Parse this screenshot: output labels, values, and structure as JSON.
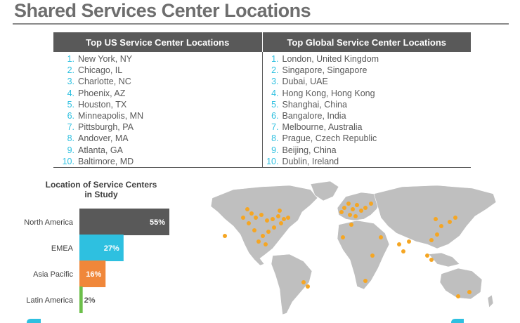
{
  "page": {
    "title": "Shared Services Center Locations"
  },
  "locations_table": {
    "us_header": "Top US Service Center Locations",
    "global_header": "Top Global Service Center Locations",
    "us": [
      {
        "num": "1.",
        "city": "New York, NY"
      },
      {
        "num": "2.",
        "city": "Chicago, IL"
      },
      {
        "num": "3.",
        "city": "Charlotte, NC"
      },
      {
        "num": "4.",
        "city": "Phoenix, AZ"
      },
      {
        "num": "5.",
        "city": "Houston, TX"
      },
      {
        "num": "6.",
        "city": "Minneapolis, MN"
      },
      {
        "num": "7.",
        "city": "Pittsburgh, PA"
      },
      {
        "num": "8.",
        "city": "Andover, MA"
      },
      {
        "num": "9.",
        "city": "Atlanta, GA"
      },
      {
        "num": "10.",
        "city": "Baltimore, MD"
      }
    ],
    "global": [
      {
        "num": "1.",
        "city": "London, United Kingdom"
      },
      {
        "num": "2.",
        "city": "Singapore, Singapore"
      },
      {
        "num": "3.",
        "city": "Dubai, UAE"
      },
      {
        "num": "4.",
        "city": "Hong Kong, Hong Kong"
      },
      {
        "num": "5.",
        "city": "Shanghai, China"
      },
      {
        "num": "6.",
        "city": "Bangalore, India"
      },
      {
        "num": "7.",
        "city": "Melbourne, Australia"
      },
      {
        "num": "8.",
        "city": "Prague, Czech Republic"
      },
      {
        "num": "9.",
        "city": "Beijing, China"
      },
      {
        "num": "10.",
        "city": "Dublin, Ireland"
      }
    ]
  },
  "chart_data": {
    "type": "bar",
    "orientation": "horizontal",
    "title": "Location of Service Centers in Study",
    "title_lines": [
      "Location of Service Centers",
      "in Study"
    ],
    "xlabel": "",
    "ylabel": "",
    "grid": false,
    "categories": [
      "North America",
      "EMEA",
      "Asia Pacific",
      "Latin America"
    ],
    "values": [
      55,
      27,
      16,
      2
    ],
    "value_labels": [
      "55%",
      "27%",
      "16%",
      "2%"
    ],
    "colors": [
      "#595959",
      "#2ec0e0",
      "#f0873a",
      "#6cbf4a"
    ],
    "label_colors": [
      "#ffffff",
      "#ffffff",
      "#ffffff",
      "#595959"
    ],
    "xlim": [
      0,
      55
    ]
  },
  "map": {
    "land_color": "#bfbfbf",
    "marker_color": "#f5a623"
  },
  "colors": {
    "accent": "#2ec0e0",
    "header_bg": "#595959"
  }
}
